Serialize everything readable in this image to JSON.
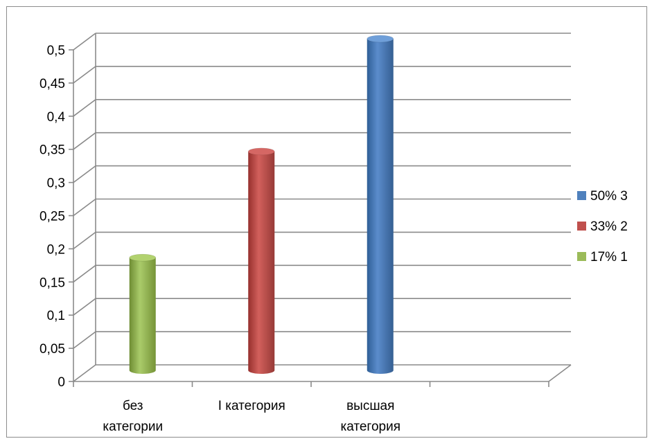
{
  "chart_data": {
    "type": "bar",
    "style": "3d-cylinder",
    "categories": [
      [
        "без",
        "категории"
      ],
      [
        "I категория"
      ],
      [
        "высшая",
        "категория"
      ],
      [
        ""
      ]
    ],
    "series": [
      {
        "name": "50% 3",
        "color": "#4F81BD",
        "category_index": 2,
        "value": 0.5
      },
      {
        "name": "33% 2",
        "color": "#C0504D",
        "category_index": 1,
        "value": 0.33
      },
      {
        "name": "17% 1",
        "color": "#9BBB59",
        "category_index": 0,
        "value": 0.17
      }
    ],
    "yticks": [
      "0",
      "0,05",
      "0,1",
      "0,15",
      "0,2",
      "0,25",
      "0,3",
      "0,35",
      "0,4",
      "0,45",
      "0,5"
    ],
    "ylim": [
      0,
      0.5
    ],
    "grid": true,
    "legend_position": "right"
  }
}
